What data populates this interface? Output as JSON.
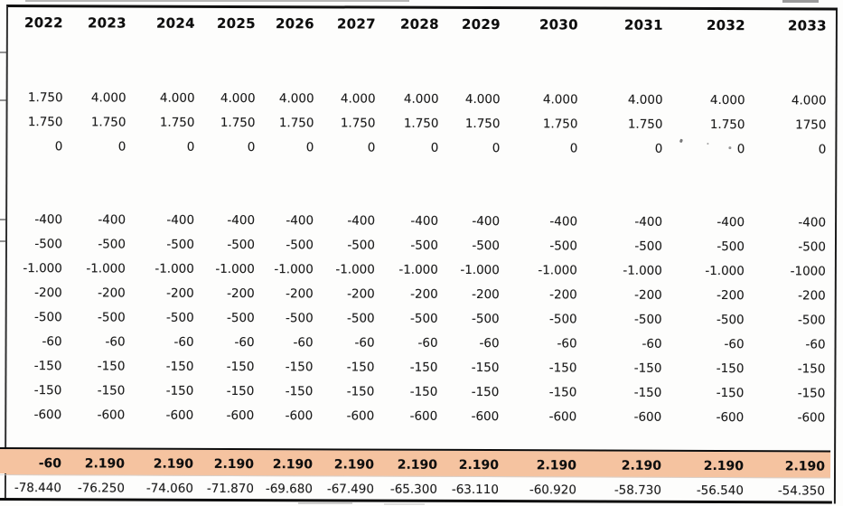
{
  "table": {
    "columns": [
      "2022",
      "2023",
      "2024",
      "2025",
      "2026",
      "2027",
      "2028",
      "2029",
      "2030",
      "2031",
      "2032",
      "2033"
    ],
    "rows": [
      {
        "type": "spacer",
        "cells": []
      },
      {
        "type": "spacer",
        "cells": []
      },
      {
        "type": "values",
        "cells": [
          "1.750",
          "4.000",
          "4.000",
          "4.000",
          "4.000",
          "4.000",
          "4.000",
          "4.000",
          "4.000",
          "4.000",
          "4.000",
          "4.000"
        ]
      },
      {
        "type": "values",
        "cells": [
          "1.750",
          "1.750",
          "1.750",
          "1.750",
          "1.750",
          "1.750",
          "1.750",
          "1.750",
          "1.750",
          "1.750",
          "1.750",
          "1750"
        ]
      },
      {
        "type": "values",
        "cells": [
          "0",
          "0",
          "0",
          "0",
          "0",
          "0",
          "0",
          "0",
          "0",
          "0",
          "0",
          "0"
        ]
      },
      {
        "type": "spacer",
        "cells": []
      },
      {
        "type": "spacer",
        "cells": []
      },
      {
        "type": "values",
        "cells": [
          "-400",
          "-400",
          "-400",
          "-400",
          "-400",
          "-400",
          "-400",
          "-400",
          "-400",
          "-400",
          "-400",
          "-400"
        ]
      },
      {
        "type": "values",
        "cells": [
          "-500",
          "-500",
          "-500",
          "-500",
          "-500",
          "-500",
          "-500",
          "-500",
          "-500",
          "-500",
          "-500",
          "-500"
        ]
      },
      {
        "type": "values",
        "cells": [
          "-1.000",
          "-1.000",
          "-1.000",
          "-1.000",
          "-1.000",
          "-1.000",
          "-1.000",
          "-1.000",
          "-1.000",
          "-1.000",
          "-1.000",
          "-1000"
        ]
      },
      {
        "type": "values",
        "cells": [
          "-200",
          "-200",
          "-200",
          "-200",
          "-200",
          "-200",
          "-200",
          "-200",
          "-200",
          "-200",
          "-200",
          "-200"
        ]
      },
      {
        "type": "values",
        "cells": [
          "-500",
          "-500",
          "-500",
          "-500",
          "-500",
          "-500",
          "-500",
          "-500",
          "-500",
          "-500",
          "-500",
          "-500"
        ]
      },
      {
        "type": "values",
        "cells": [
          "-60",
          "-60",
          "-60",
          "-60",
          "-60",
          "-60",
          "-60",
          "-60",
          "-60",
          "-60",
          "-60",
          "-60"
        ]
      },
      {
        "type": "values",
        "cells": [
          "-150",
          "-150",
          "-150",
          "-150",
          "-150",
          "-150",
          "-150",
          "-150",
          "-150",
          "-150",
          "-150",
          "-150"
        ]
      },
      {
        "type": "values",
        "cells": [
          "-150",
          "-150",
          "-150",
          "-150",
          "-150",
          "-150",
          "-150",
          "-150",
          "-150",
          "-150",
          "-150",
          "-150"
        ]
      },
      {
        "type": "values",
        "cells": [
          "-600",
          "-600",
          "-600",
          "-600",
          "-600",
          "-600",
          "-600",
          "-600",
          "-600",
          "-600",
          "-600",
          "-600"
        ]
      },
      {
        "type": "spacer",
        "cells": []
      },
      {
        "type": "total",
        "cells": [
          "-60",
          "2.190",
          "2.190",
          "2.190",
          "2.190",
          "2.190",
          "2.190",
          "2.190",
          "2.190",
          "2.190",
          "2.190",
          "2.190"
        ]
      },
      {
        "type": "values",
        "cells": [
          "-78.440",
          "-76.250",
          "-74.060",
          "-71.870",
          "-69.680",
          "-67.490",
          "-65.300",
          "-63.110",
          "-60.920",
          "-58.730",
          "-56.540",
          "-54.350"
        ]
      }
    ]
  },
  "colors": {
    "highlight": "#f5c3a0",
    "border": "#101010",
    "text": "#1c1c1c"
  }
}
